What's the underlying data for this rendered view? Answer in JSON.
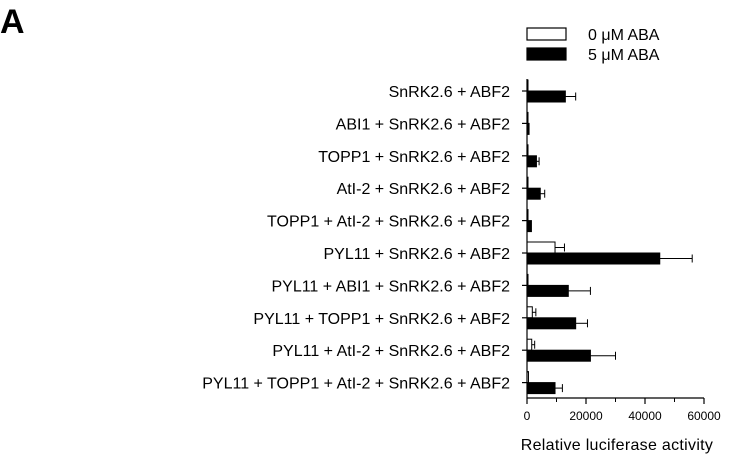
{
  "panel_label": "A",
  "chart_data": {
    "type": "bar",
    "orientation": "horizontal",
    "title": "",
    "xlabel": "Relative luciferase activity",
    "ylabel": "",
    "xlim": [
      0,
      60000
    ],
    "xticks": [
      0,
      20000,
      40000,
      60000
    ],
    "xtick_labels": [
      "0",
      "20000",
      "40000",
      "60000"
    ],
    "legend_position": "top-right",
    "categories": [
      "SnRK2.6 + ABF2",
      "ABI1 + SnRK2.6 + ABF2",
      "TOPP1 + SnRK2.6 + ABF2",
      "AtI-2 + SnRK2.6 + ABF2",
      "TOPP1 + AtI-2 + SnRK2.6 + ABF2",
      "PYL11 + SnRK2.6 + ABF2",
      "PYL11 + ABI1 + SnRK2.6 + ABF2",
      "PYL11 + TOPP1 + SnRK2.6 + ABF2",
      "PYL11 + AtI-2 + SnRK2.6 + ABF2",
      "PYL11 + TOPP1 + AtI-2 + SnRK2.6 + ABF2"
    ],
    "series": [
      {
        "name": "0 μM ABA",
        "fill": "#ffffff",
        "values": [
          300,
          200,
          200,
          200,
          200,
          9500,
          300,
          1800,
          1600,
          500
        ],
        "errors": [
          0,
          0,
          0,
          0,
          0,
          3200,
          0,
          1200,
          1000,
          0
        ]
      },
      {
        "name": "5 μM ABA",
        "fill": "#000000",
        "values": [
          13000,
          700,
          3200,
          4500,
          1500,
          45000,
          14000,
          16500,
          21500,
          9500
        ],
        "errors": [
          3500,
          0,
          900,
          1500,
          0,
          11000,
          7500,
          4000,
          8500,
          2500
        ]
      }
    ]
  }
}
